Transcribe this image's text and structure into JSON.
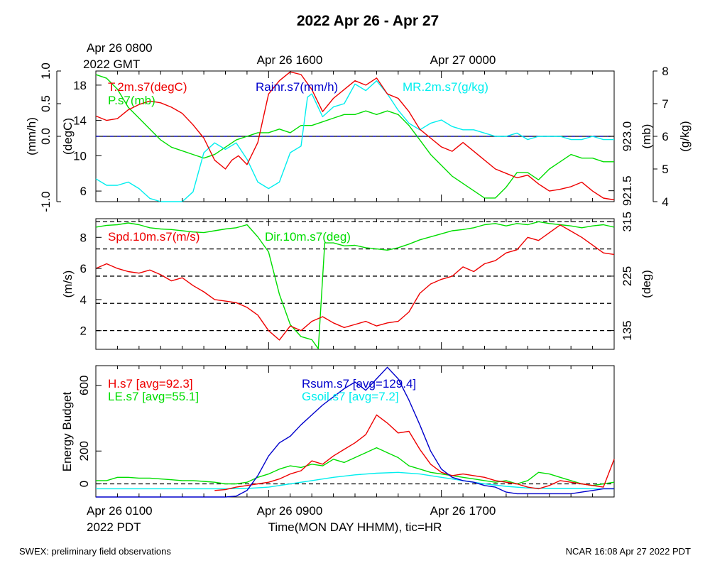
{
  "title": "2022 Apr 26 - Apr 27",
  "footer": {
    "left": "SWEX: preliminary field observations",
    "right": "NCAR 16:08 Apr 27 2022 PDT"
  },
  "top_axis": {
    "labels": [
      "Apr 26 0800",
      "Apr 26 1600",
      "Apr 27 0000"
    ],
    "sublabel": "2022 GMT"
  },
  "bottom_axis": {
    "labels": [
      "Apr 26 0100",
      "Apr 26 0900",
      "Apr 26 1700"
    ],
    "sublabel": "2022 PDT",
    "title": "Time(MON DAY HHMM), tic=HR"
  },
  "colors": {
    "red": "#ee0000",
    "green": "#00dd00",
    "blue": "#0000cc",
    "cyan": "#00eeee",
    "black": "#000000"
  },
  "chart_data": [
    {
      "type": "line",
      "panel": "top",
      "x_hours_pdt": [
        0,
        24
      ],
      "axes": {
        "left_outer": {
          "label": "(mm/h)",
          "ticks": [
            "-1.0",
            "0.0",
            "0.5",
            "1.0"
          ],
          "range": [
            -1.0,
            1.0
          ]
        },
        "left_inner": {
          "label": "(degC)",
          "ticks": [
            "6",
            "10",
            "14",
            "18"
          ],
          "range": [
            4.8,
            19.6
          ]
        },
        "right_inner": {
          "label": "(mb)",
          "ticks": [
            "923.0",
            "921.5"
          ],
          "range": [
            921.2,
            924.8
          ]
        },
        "right_outer": {
          "label": "(g/kg)",
          "ticks": [
            "4",
            "5",
            "6",
            "7",
            "8"
          ],
          "range": [
            4,
            8
          ]
        }
      },
      "series": [
        {
          "name": "T.2m.s7(degC)",
          "color": "red",
          "axis": "left_inner",
          "x": [
            0,
            0.5,
            1,
            1.5,
            2,
            2.5,
            3,
            3.5,
            4,
            4.5,
            5,
            5.5,
            6,
            6.3,
            6.6,
            7,
            7.5,
            8,
            8.5,
            9,
            9.5,
            10,
            10.5,
            11,
            11.5,
            12,
            12.5,
            13,
            13.5,
            14,
            14.5,
            15,
            15.5,
            16,
            16.5,
            17,
            17.5,
            18,
            18.5,
            19,
            19.5,
            20,
            20.5,
            21,
            21.5,
            22,
            22.5,
            23,
            23.5,
            24
          ],
          "y": [
            14.5,
            14.0,
            14.2,
            15.2,
            15.8,
            16.2,
            16.0,
            15.5,
            14.8,
            13.5,
            12.0,
            9.5,
            8.5,
            9.5,
            10.0,
            9.0,
            11.5,
            17.0,
            18.5,
            19.5,
            19.2,
            17.5,
            15.0,
            16.5,
            17.5,
            18.5,
            18.0,
            18.8,
            17.0,
            16.5,
            15.0,
            13.0,
            12.0,
            11.0,
            10.5,
            11.5,
            10.5,
            9.5,
            8.5,
            8.0,
            7.5,
            7.8,
            6.8,
            6.0,
            6.2,
            6.5,
            7.0,
            6.0,
            5.2,
            5.0
          ]
        },
        {
          "name": "P.s7(mb)",
          "color": "green",
          "axis": "right_inner",
          "x": [
            0,
            0.5,
            1,
            1.5,
            2,
            2.5,
            3,
            3.5,
            4,
            4.5,
            5,
            5.5,
            6,
            6.5,
            7,
            7.5,
            8,
            8.5,
            9,
            9.5,
            10,
            10.5,
            11,
            11.5,
            12,
            12.5,
            13,
            13.5,
            14,
            14.5,
            15,
            15.5,
            16,
            16.5,
            17,
            17.5,
            18,
            18.5,
            19,
            19.5,
            20,
            20.5,
            21,
            21.5,
            22,
            22.5,
            23,
            23.5,
            24
          ],
          "y": [
            924.7,
            924.6,
            924.3,
            923.8,
            923.5,
            923.2,
            922.9,
            922.7,
            922.6,
            922.5,
            922.4,
            922.5,
            922.7,
            922.9,
            923.0,
            923.1,
            923.1,
            923.2,
            923.1,
            923.3,
            923.3,
            923.4,
            923.5,
            923.6,
            923.6,
            923.7,
            923.6,
            923.7,
            923.6,
            923.3,
            922.9,
            922.5,
            922.2,
            921.9,
            921.7,
            921.5,
            921.3,
            921.3,
            921.6,
            922.0,
            922.0,
            921.8,
            922.1,
            922.3,
            922.5,
            922.4,
            922.4,
            922.3,
            922.3
          ]
        },
        {
          "name": "MR.2m.s7(g/kg)",
          "color": "cyan",
          "axis": "right_outer",
          "x": [
            0,
            0.5,
            1,
            1.5,
            2,
            2.5,
            3,
            3.5,
            4,
            4.5,
            5,
            5.5,
            6,
            6.5,
            7,
            7.5,
            8,
            8.5,
            9,
            9.5,
            9.8,
            10,
            10.5,
            11,
            11.5,
            12,
            12.5,
            13,
            13.5,
            14,
            14.5,
            15,
            15.5,
            16,
            16.5,
            17,
            17.5,
            18,
            18.5,
            19,
            19.5,
            20,
            20.5,
            21,
            21.5,
            22,
            22.5,
            23,
            23.5,
            24
          ],
          "y": [
            4.7,
            4.5,
            4.5,
            4.6,
            4.4,
            4.1,
            3.9,
            3.8,
            3.9,
            4.3,
            5.5,
            5.8,
            5.6,
            5.8,
            5.3,
            4.6,
            4.4,
            4.6,
            5.5,
            5.7,
            7.2,
            7.3,
            6.6,
            6.9,
            7.0,
            7.6,
            7.4,
            7.7,
            7.3,
            6.8,
            6.4,
            6.2,
            6.4,
            6.5,
            6.3,
            6.2,
            6.2,
            6.1,
            6.0,
            6.0,
            6.1,
            5.9,
            6.0,
            6.0,
            6.0,
            5.9,
            5.9,
            6.0,
            5.9,
            5.9
          ]
        },
        {
          "name": "Rainr.s7(mm/h)",
          "color": "blue",
          "axis": "left_outer",
          "x": [
            0,
            24
          ],
          "y": [
            0,
            0
          ]
        }
      ]
    },
    {
      "type": "line",
      "panel": "middle",
      "x_hours_pdt": [
        0,
        24
      ],
      "axes": {
        "left": {
          "label": "(m/s)",
          "ticks": [
            "2",
            "4",
            "6",
            "8"
          ],
          "range": [
            0.8,
            9.2
          ]
        },
        "right": {
          "label": "(deg)",
          "ticks": [
            "135",
            "225",
            "315"
          ],
          "range": [
            104,
            320
          ]
        }
      },
      "series": [
        {
          "name": "Spd.10m.s7(m/s)",
          "color": "red",
          "axis": "left",
          "x": [
            0,
            0.5,
            1,
            1.5,
            2,
            2.5,
            3,
            3.5,
            4,
            4.5,
            5,
            5.5,
            6,
            6.5,
            7,
            7.5,
            8,
            8.5,
            9,
            9.5,
            10,
            10.5,
            11,
            11.5,
            12,
            12.5,
            13,
            13.5,
            14,
            14.5,
            15,
            15.5,
            16,
            16.5,
            17,
            17.5,
            18,
            18.5,
            19,
            19.5,
            20,
            20.5,
            21,
            21.5,
            22,
            22.5,
            23,
            23.5,
            24
          ],
          "y": [
            6.0,
            6.3,
            6.0,
            5.8,
            5.7,
            5.9,
            5.6,
            5.2,
            5.4,
            4.9,
            4.5,
            4.0,
            3.9,
            3.8,
            3.5,
            3.0,
            2.0,
            1.4,
            2.3,
            2.0,
            2.6,
            2.9,
            2.5,
            2.2,
            2.4,
            2.6,
            2.3,
            2.5,
            2.6,
            3.2,
            4.4,
            5.0,
            5.3,
            5.5,
            6.1,
            5.8,
            6.3,
            6.5,
            7.0,
            7.2,
            8.0,
            7.8,
            8.3,
            8.8,
            8.4,
            8.0,
            7.5,
            7.0,
            6.9
          ]
        },
        {
          "name": "Dir.10m.s7(deg)",
          "color": "green",
          "axis": "right",
          "x": [
            0,
            0.5,
            1,
            1.5,
            2,
            2.5,
            3,
            3.5,
            4,
            4.5,
            5,
            5.5,
            6,
            6.5,
            7,
            7.5,
            8,
            8.5,
            9,
            9.5,
            10,
            10.3,
            10.6,
            11,
            11.5,
            12,
            12.5,
            13,
            13.5,
            14,
            14.5,
            15,
            15.5,
            16,
            16.5,
            17,
            17.5,
            18,
            18.5,
            19,
            19.5,
            20,
            20.5,
            21,
            21.5,
            22,
            22.5,
            23,
            23.5,
            24
          ],
          "y": [
            306,
            309,
            310,
            313,
            310,
            305,
            303,
            302,
            300,
            298,
            297,
            300,
            303,
            305,
            310,
            290,
            265,
            195,
            145,
            125,
            120,
            105,
            280,
            280,
            275,
            276,
            272,
            270,
            268,
            272,
            278,
            285,
            290,
            295,
            300,
            302,
            305,
            310,
            312,
            308,
            312,
            310,
            315,
            312,
            310,
            308,
            305,
            308,
            310,
            306
          ]
        }
      ]
    },
    {
      "type": "line",
      "panel": "bottom",
      "x_hours_pdt": [
        0,
        24
      ],
      "ylabel": "Energy Budget",
      "yticks": [
        "0",
        "200",
        "600"
      ],
      "ylim": [
        -80,
        720
      ],
      "series": [
        {
          "name": "H.s7 [avg=92.3]",
          "color": "red",
          "x": [
            5.5,
            6,
            6.5,
            7,
            7.5,
            8,
            8.5,
            9,
            9.5,
            10,
            10.5,
            11,
            11.5,
            12,
            12.5,
            13,
            13.5,
            14,
            14.5,
            15,
            15.5,
            16,
            16.5,
            17,
            17.5,
            18,
            18.5,
            19,
            19.5,
            20,
            20.5,
            21,
            21.5,
            22,
            22.5,
            23,
            23.5,
            24
          ],
          "y": [
            -40,
            -35,
            -20,
            -10,
            0,
            10,
            30,
            60,
            80,
            140,
            120,
            170,
            210,
            250,
            300,
            420,
            370,
            310,
            320,
            210,
            120,
            70,
            50,
            60,
            50,
            40,
            20,
            10,
            0,
            -20,
            -30,
            -10,
            20,
            10,
            0,
            -10,
            -20,
            150
          ]
        },
        {
          "name": "LE.s7 [avg=55.1]",
          "color": "green",
          "x": [
            0,
            0.5,
            1,
            1.5,
            2,
            2.5,
            3,
            3.5,
            4,
            4.5,
            5,
            5.5,
            6,
            6.5,
            7,
            7.5,
            8,
            8.5,
            9,
            9.5,
            10,
            10.5,
            11,
            11.5,
            12,
            12.5,
            13,
            13.5,
            14,
            14.5,
            15,
            15.5,
            16,
            16.5,
            17,
            17.5,
            18,
            18.5,
            19,
            19.5,
            20,
            20.5,
            21,
            21.5,
            22,
            22.5,
            23,
            23.5,
            24
          ],
          "y": [
            20,
            20,
            40,
            40,
            35,
            35,
            30,
            25,
            20,
            20,
            15,
            10,
            0,
            0,
            10,
            40,
            60,
            90,
            110,
            100,
            120,
            110,
            150,
            130,
            160,
            190,
            220,
            190,
            160,
            110,
            90,
            70,
            60,
            50,
            40,
            30,
            20,
            10,
            20,
            0,
            20,
            70,
            60,
            40,
            20,
            0,
            -10,
            0,
            10
          ]
        },
        {
          "name": "Rsum.s7 [avg=129.4]",
          "color": "blue",
          "x": [
            0,
            0.5,
            1,
            1.5,
            2,
            2.5,
            3,
            3.5,
            4,
            4.5,
            5,
            5.5,
            6,
            6.5,
            7,
            7.5,
            8,
            8.5,
            9,
            9.5,
            10,
            10.5,
            11,
            11.5,
            12,
            12.5,
            13,
            13.5,
            14,
            14.5,
            15,
            15.5,
            16,
            16.5,
            17,
            17.5,
            18,
            18.5,
            19,
            19.5,
            20,
            20.5,
            21,
            21.5,
            22,
            22.5,
            23,
            23.5,
            24
          ],
          "y": [
            -80,
            -80,
            -80,
            -80,
            -80,
            -80,
            -80,
            -80,
            -80,
            -80,
            -80,
            -80,
            -80,
            -75,
            -40,
            50,
            170,
            250,
            290,
            360,
            420,
            480,
            530,
            580,
            620,
            570,
            640,
            710,
            640,
            510,
            360,
            200,
            90,
            40,
            20,
            10,
            -10,
            -20,
            -50,
            -60,
            -60,
            -60,
            -60,
            -60,
            -60,
            -50,
            -40,
            -30,
            -30
          ]
        },
        {
          "name": "Gsoil.s7 [avg=7.2]",
          "color": "cyan",
          "x": [
            0,
            2,
            4,
            6,
            7,
            8,
            9,
            10,
            11,
            12,
            13,
            14,
            15,
            16,
            17,
            18,
            19,
            20,
            21,
            22,
            23,
            24
          ],
          "y": [
            -30,
            -30,
            -30,
            -30,
            -28,
            -20,
            0,
            20,
            40,
            55,
            65,
            70,
            60,
            40,
            20,
            0,
            -15,
            -25,
            -28,
            -28,
            -30,
            -30
          ]
        }
      ],
      "reference_line": 0
    }
  ]
}
